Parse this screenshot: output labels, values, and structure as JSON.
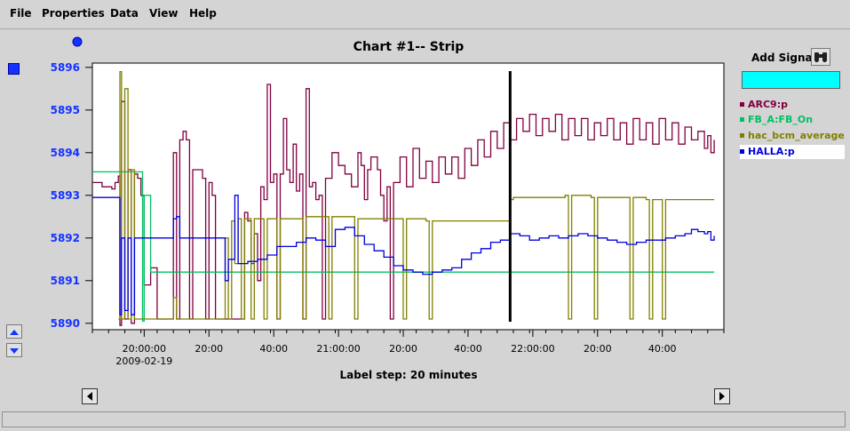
{
  "menu": {
    "items": [
      {
        "label": "File"
      },
      {
        "label": "Properties"
      },
      {
        "label": "Data"
      },
      {
        "label": "View"
      },
      {
        "label": "Help"
      }
    ]
  },
  "side_panel": {
    "add_signal_label": "Add Signal",
    "add_signal_icon": "binoculars-icon",
    "signal_input_value": "",
    "signal_input_color": "#00ffff"
  },
  "colors": {
    "accent_blue": "#1533ff",
    "selected_row": "#ffffff"
  },
  "legend": [
    {
      "name": "ARC9:p",
      "color": "#800040",
      "selected": false
    },
    {
      "name": "FB_A:FB_On",
      "color": "#00c060",
      "selected": false
    },
    {
      "name": "hac_bcm_average",
      "color": "#808000",
      "selected": false
    },
    {
      "name": "HALLA:p",
      "color": "#0000e0",
      "selected": true
    }
  ],
  "chart_data": {
    "type": "line",
    "title": "Chart #1-- Strip",
    "xlabel": "Label step: 20 minutes",
    "ylabel": "",
    "x_unit": "minutes after 2009-02-19 19:44",
    "xlim": [
      "2009-02-19 19:44",
      "2009-02-19 22:59"
    ],
    "ylim": [
      5889.85,
      5896.1
    ],
    "y_ticks": [
      5890,
      5891,
      5892,
      5893,
      5894,
      5895,
      5896
    ],
    "x_ticks": [
      {
        "label": "20:00:00",
        "sublabel": "2009-02-19",
        "time": "2009-02-19 20:00"
      },
      {
        "label": "20:00",
        "time": "2009-02-19 20:20"
      },
      {
        "label": "40:00",
        "time": "2009-02-19 20:40"
      },
      {
        "label": "21:00:00",
        "time": "2009-02-19 21:00"
      },
      {
        "label": "20:00",
        "time": "2009-02-19 21:20"
      },
      {
        "label": "40:00",
        "time": "2009-02-19 21:40"
      },
      {
        "label": "22:00:00",
        "time": "2009-02-19 22:00"
      },
      {
        "label": "20:00",
        "time": "2009-02-19 22:20"
      },
      {
        "label": "40:00",
        "time": "2009-02-19 22:40"
      }
    ],
    "cursor_time": "2009-02-19 21:53",
    "grid": false,
    "legend_placement": "right",
    "series": [
      {
        "name": "ARC9:p",
        "color": "#800040",
        "points": [
          [
            0,
            5893.3
          ],
          [
            3,
            5893.2
          ],
          [
            6,
            5893.15
          ],
          [
            7,
            5893.3
          ],
          [
            8,
            5893.45
          ],
          [
            8.5,
            5889.95
          ],
          [
            9,
            5895.2
          ],
          [
            10,
            5890.1
          ],
          [
            11,
            5893.6
          ],
          [
            12,
            5890.0
          ],
          [
            13,
            5893.5
          ],
          [
            14,
            5893.4
          ],
          [
            15,
            5893.0
          ],
          [
            16,
            5890.9
          ],
          [
            17,
            5890.9
          ],
          [
            18,
            5891.3
          ],
          [
            19,
            5891.3
          ],
          [
            20,
            5890.1
          ],
          [
            24,
            5890.1
          ],
          [
            25,
            5894.0
          ],
          [
            26,
            5890.1
          ],
          [
            27,
            5894.3
          ],
          [
            28,
            5894.5
          ],
          [
            29,
            5894.3
          ],
          [
            30,
            5890.1
          ],
          [
            31,
            5893.6
          ],
          [
            34,
            5893.4
          ],
          [
            35,
            5890.1
          ],
          [
            36,
            5893.3
          ],
          [
            37,
            5893.0
          ],
          [
            38,
            5890.1
          ],
          [
            46,
            5890.1
          ],
          [
            47,
            5892.6
          ],
          [
            48,
            5892.4
          ],
          [
            49,
            5891.4
          ],
          [
            50,
            5892.1
          ],
          [
            51,
            5891.0
          ],
          [
            52,
            5893.2
          ],
          [
            53,
            5892.9
          ],
          [
            54,
            5895.6
          ],
          [
            55,
            5893.3
          ],
          [
            56,
            5893.5
          ],
          [
            57,
            5890.1
          ],
          [
            58,
            5893.5
          ],
          [
            59,
            5894.8
          ],
          [
            60,
            5893.6
          ],
          [
            61,
            5893.3
          ],
          [
            62,
            5894.2
          ],
          [
            63,
            5893.1
          ],
          [
            64,
            5893.5
          ],
          [
            65,
            5890.1
          ],
          [
            66,
            5895.5
          ],
          [
            67,
            5893.2
          ],
          [
            68,
            5893.3
          ],
          [
            69,
            5892.9
          ],
          [
            70,
            5893.0
          ],
          [
            71,
            5890.1
          ],
          [
            72,
            5893.4
          ],
          [
            74,
            5894.0
          ],
          [
            76,
            5893.7
          ],
          [
            78,
            5893.5
          ],
          [
            80,
            5893.2
          ],
          [
            82,
            5894.0
          ],
          [
            83,
            5893.7
          ],
          [
            84,
            5892.9
          ],
          [
            85,
            5893.6
          ],
          [
            86,
            5893.9
          ],
          [
            88,
            5893.6
          ],
          [
            89,
            5893.0
          ],
          [
            90,
            5892.4
          ],
          [
            91,
            5893.2
          ],
          [
            92,
            5890.1
          ],
          [
            93,
            5893.3
          ],
          [
            95,
            5893.9
          ],
          [
            97,
            5893.2
          ],
          [
            99,
            5894.1
          ],
          [
            101,
            5893.4
          ],
          [
            103,
            5893.8
          ],
          [
            105,
            5893.3
          ],
          [
            107,
            5893.9
          ],
          [
            109,
            5893.5
          ],
          [
            111,
            5893.9
          ],
          [
            113,
            5893.4
          ],
          [
            115,
            5894.1
          ],
          [
            117,
            5893.7
          ],
          [
            119,
            5894.3
          ],
          [
            121,
            5893.9
          ],
          [
            123,
            5894.5
          ],
          [
            125,
            5894.1
          ],
          [
            127,
            5894.7
          ],
          [
            129,
            5894.3
          ],
          [
            131,
            5894.8
          ],
          [
            133,
            5894.5
          ],
          [
            135,
            5894.9
          ],
          [
            137,
            5894.4
          ],
          [
            139,
            5894.8
          ],
          [
            141,
            5894.5
          ],
          [
            143,
            5894.9
          ],
          [
            145,
            5894.3
          ],
          [
            147,
            5894.8
          ],
          [
            149,
            5894.4
          ],
          [
            151,
            5894.8
          ],
          [
            153,
            5894.3
          ],
          [
            155,
            5894.7
          ],
          [
            157,
            5894.4
          ],
          [
            159,
            5894.8
          ],
          [
            161,
            5894.3
          ],
          [
            163,
            5894.7
          ],
          [
            165,
            5894.2
          ],
          [
            167,
            5894.8
          ],
          [
            169,
            5894.3
          ],
          [
            171,
            5894.7
          ],
          [
            173,
            5894.2
          ],
          [
            175,
            5894.8
          ],
          [
            177,
            5894.3
          ],
          [
            179,
            5894.7
          ],
          [
            181,
            5894.2
          ],
          [
            183,
            5894.6
          ],
          [
            185,
            5894.3
          ],
          [
            187,
            5894.5
          ],
          [
            189,
            5894.1
          ],
          [
            190,
            5894.4
          ],
          [
            191,
            5894.0
          ],
          [
            192,
            5894.3
          ]
        ]
      },
      {
        "name": "FB_A:FB_On",
        "color": "#00c060",
        "points": [
          [
            0,
            5893.55
          ],
          [
            15,
            5893.55
          ],
          [
            15.5,
            5890.05
          ],
          [
            16,
            5893.0
          ],
          [
            17,
            5893.0
          ],
          [
            18,
            5891.2
          ],
          [
            192,
            5891.2
          ]
        ]
      },
      {
        "name": "hac_bcm_average",
        "color": "#808000",
        "points": [
          [
            8,
            5890.1
          ],
          [
            8.5,
            5895.9
          ],
          [
            9,
            5890.1
          ],
          [
            10,
            5895.5
          ],
          [
            11,
            5890.1
          ],
          [
            12,
            5893.6
          ],
          [
            13,
            5890.1
          ],
          [
            24,
            5890.1
          ],
          [
            25,
            5890.6
          ],
          [
            26,
            5890.1
          ],
          [
            40,
            5890.1
          ],
          [
            41,
            5892.0
          ],
          [
            42,
            5890.1
          ],
          [
            43,
            5892.4
          ],
          [
            44,
            5891.4
          ],
          [
            45,
            5892.45
          ],
          [
            46,
            5890.1
          ],
          [
            47,
            5892.45
          ],
          [
            49,
            5890.1
          ],
          [
            50,
            5892.45
          ],
          [
            53,
            5890.1
          ],
          [
            54,
            5892.45
          ],
          [
            57,
            5890.1
          ],
          [
            58,
            5892.45
          ],
          [
            65,
            5890.1
          ],
          [
            66,
            5892.5
          ],
          [
            73,
            5890.1
          ],
          [
            74,
            5892.5
          ],
          [
            80,
            5892.5
          ],
          [
            81,
            5890.1
          ],
          [
            82,
            5892.45
          ],
          [
            95,
            5892.45
          ],
          [
            96,
            5890.1
          ],
          [
            97,
            5892.45
          ],
          [
            103,
            5892.4
          ],
          [
            104,
            5890.1
          ],
          [
            105,
            5892.4
          ],
          [
            128,
            5892.4
          ],
          [
            129,
            5892.9
          ],
          [
            130,
            5892.95
          ],
          [
            146,
            5893.0
          ],
          [
            147,
            5890.1
          ],
          [
            148,
            5893.0
          ],
          [
            154,
            5892.95
          ],
          [
            155,
            5890.1
          ],
          [
            156,
            5892.95
          ],
          [
            165,
            5892.95
          ],
          [
            166,
            5890.1
          ],
          [
            167,
            5892.95
          ],
          [
            171,
            5892.9
          ],
          [
            172,
            5890.1
          ],
          [
            173,
            5892.9
          ],
          [
            175,
            5892.9
          ],
          [
            176,
            5890.1
          ],
          [
            177,
            5892.9
          ],
          [
            192,
            5892.9
          ]
        ]
      },
      {
        "name": "HALLA:p",
        "color": "#0000e0",
        "points": [
          [
            0,
            5892.95
          ],
          [
            8,
            5892.95
          ],
          [
            8.5,
            5890.2
          ],
          [
            9,
            5892.0
          ],
          [
            10,
            5890.3
          ],
          [
            11,
            5892.0
          ],
          [
            12,
            5890.2
          ],
          [
            13,
            5892.0
          ],
          [
            24,
            5892.0
          ],
          [
            25,
            5892.45
          ],
          [
            26,
            5892.5
          ],
          [
            27,
            5892.0
          ],
          [
            40,
            5892.0
          ],
          [
            41,
            5891.0
          ],
          [
            42,
            5891.5
          ],
          [
            43,
            5891.5
          ],
          [
            44,
            5893.0
          ],
          [
            45,
            5891.4
          ],
          [
            48,
            5891.45
          ],
          [
            51,
            5891.5
          ],
          [
            54,
            5891.6
          ],
          [
            57,
            5891.8
          ],
          [
            60,
            5891.8
          ],
          [
            63,
            5891.9
          ],
          [
            66,
            5892.0
          ],
          [
            69,
            5891.95
          ],
          [
            72,
            5891.8
          ],
          [
            75,
            5892.2
          ],
          [
            78,
            5892.25
          ],
          [
            81,
            5892.05
          ],
          [
            84,
            5891.85
          ],
          [
            87,
            5891.7
          ],
          [
            90,
            5891.55
          ],
          [
            93,
            5891.35
          ],
          [
            96,
            5891.25
          ],
          [
            99,
            5891.2
          ],
          [
            102,
            5891.15
          ],
          [
            105,
            5891.2
          ],
          [
            108,
            5891.25
          ],
          [
            111,
            5891.3
          ],
          [
            114,
            5891.5
          ],
          [
            117,
            5891.65
          ],
          [
            120,
            5891.75
          ],
          [
            123,
            5891.9
          ],
          [
            126,
            5891.95
          ],
          [
            129,
            5892.1
          ],
          [
            132,
            5892.05
          ],
          [
            135,
            5891.95
          ],
          [
            138,
            5892.0
          ],
          [
            141,
            5892.05
          ],
          [
            144,
            5892.0
          ],
          [
            147,
            5892.05
          ],
          [
            150,
            5892.1
          ],
          [
            153,
            5892.05
          ],
          [
            156,
            5892.0
          ],
          [
            159,
            5891.95
          ],
          [
            162,
            5891.9
          ],
          [
            165,
            5891.85
          ],
          [
            168,
            5891.9
          ],
          [
            171,
            5891.95
          ],
          [
            174,
            5891.95
          ],
          [
            177,
            5892.0
          ],
          [
            180,
            5892.05
          ],
          [
            183,
            5892.1
          ],
          [
            185,
            5892.2
          ],
          [
            187,
            5892.15
          ],
          [
            189,
            5892.1
          ],
          [
            190,
            5892.15
          ],
          [
            191,
            5891.95
          ],
          [
            192,
            5892.05
          ]
        ]
      }
    ]
  }
}
